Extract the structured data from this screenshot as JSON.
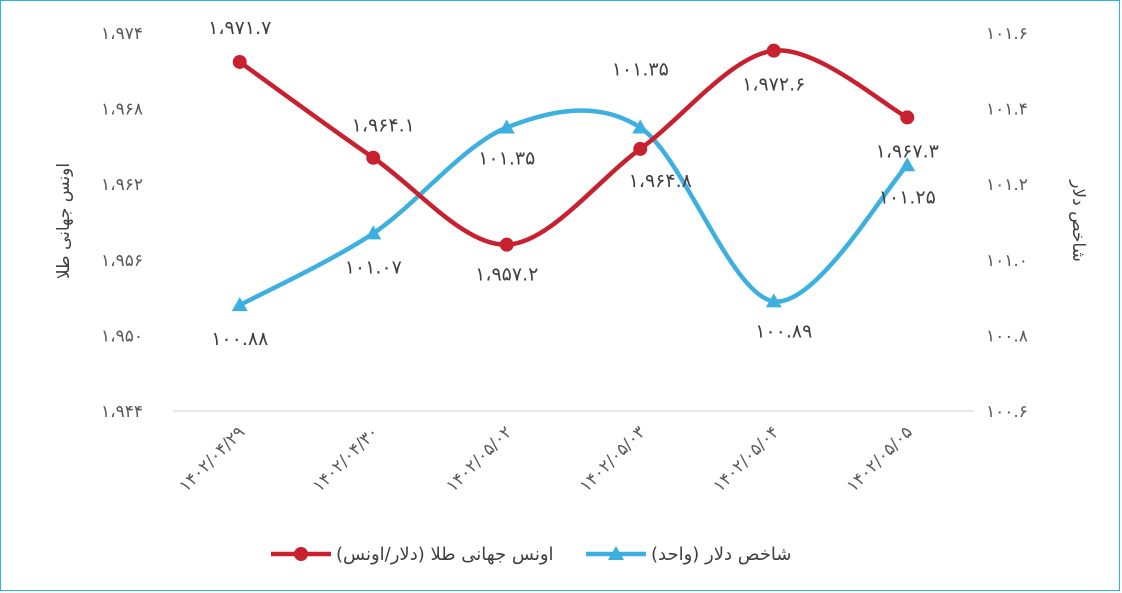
{
  "chart_data": {
    "type": "line",
    "categories": [
      "۱۴۰۲/۰۴/۲۹",
      "۱۴۰۲/۰۴/۳۰",
      "۱۴۰۲/۰۵/۰۲",
      "۱۴۰۲/۰۵/۰۳",
      "۱۴۰۲/۰۵/۰۴",
      "۱۴۰۲/۰۵/۰۵"
    ],
    "series": [
      {
        "name": "اونس جهانی طلا (دلار/اونس)",
        "axis": "left",
        "color": "#c8202f",
        "marker": "circle",
        "values": [
          1971.7,
          1964.1,
          1957.2,
          1964.8,
          1972.6,
          1967.3
        ],
        "labels": [
          "۱،۹۷۱.۷",
          "۱،۹۶۴.۱",
          "۱،۹۵۷.۲",
          "۱،۹۶۴.۸",
          "۱،۹۷۲.۶",
          "۱،۹۶۷.۳"
        ]
      },
      {
        "name": "شاخص دلار (واحد)",
        "axis": "right",
        "color": "#3db0e0",
        "marker": "triangle",
        "values": [
          100.88,
          101.07,
          101.35,
          101.35,
          100.89,
          101.25
        ],
        "labels": [
          "۱۰۰.۸۸",
          "۱۰۱.۰۷",
          "۱۰۱.۳۵",
          "۱۰۱.۳۵",
          "۱۰۰.۸۹",
          "۱۰۱.۲۵"
        ]
      }
    ],
    "left_axis": {
      "title": "اونس جهانی طلا",
      "ylim": [
        1944,
        1974
      ],
      "ticks": [
        1944,
        1950,
        1956,
        1962,
        1968,
        1974
      ],
      "tick_labels": [
        "۱،۹۴۴",
        "۱،۹۵۰",
        "۱،۹۵۶",
        "۱،۹۶۲",
        "۱،۹۶۸",
        "۱،۹۷۴"
      ]
    },
    "right_axis": {
      "title": "شاخص دلار",
      "ylim": [
        100.6,
        101.6
      ],
      "ticks": [
        100.6,
        100.8,
        101.0,
        101.2,
        101.4,
        101.6
      ],
      "tick_labels": [
        "۱۰۰.۶",
        "۱۰۰.۸",
        "۱۰۱.۰",
        "۱۰۱.۲",
        "۱۰۱.۴",
        "۱۰۱.۶"
      ]
    },
    "legend_position": "bottom",
    "grid": false,
    "smooth": true
  }
}
